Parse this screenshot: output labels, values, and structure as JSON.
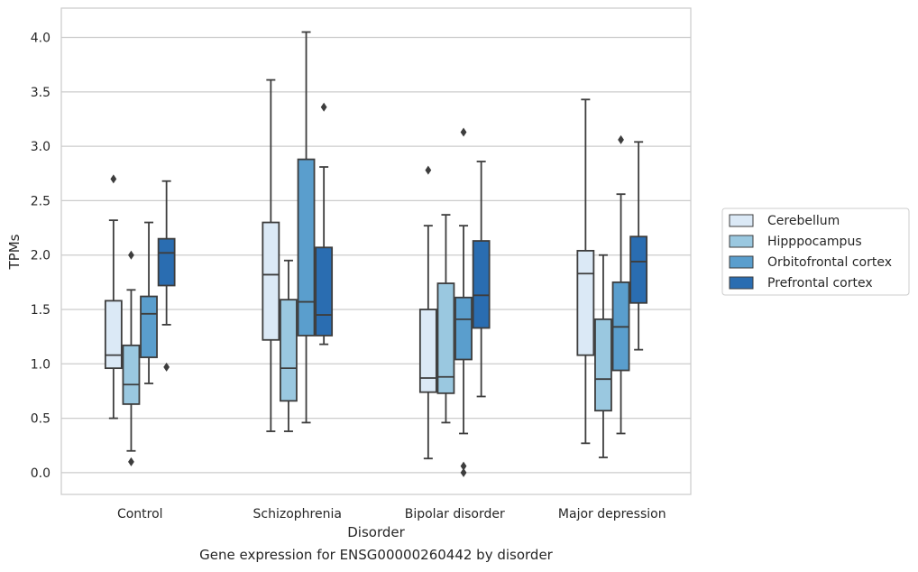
{
  "caption": "Gene expression for ENSG00000260442 by disorder",
  "chart_data": {
    "type": "box",
    "xlabel": "Disorder",
    "ylabel": "TPMs",
    "ylim": [
      -0.2,
      4.27
    ],
    "yticks": [
      "0.0",
      "0.5",
      "1.0",
      "1.5",
      "2.0",
      "2.5",
      "3.0",
      "3.5",
      "4.0"
    ],
    "grid": "horizontal",
    "legend_position": "right",
    "categories": [
      "Control",
      "Schizophrenia",
      "Bipolar disorder",
      "Major depression"
    ],
    "series": [
      {
        "name": "Cerebellum",
        "color": "#dbe9f6",
        "boxes": [
          {
            "q1": 0.96,
            "median": 1.08,
            "q3": 1.58,
            "whisker_low": 0.5,
            "whisker_high": 2.32,
            "outliers": [
              2.7
            ]
          },
          {
            "q1": 1.22,
            "median": 1.82,
            "q3": 2.3,
            "whisker_low": 0.38,
            "whisker_high": 3.61,
            "outliers": []
          },
          {
            "q1": 0.74,
            "median": 0.87,
            "q3": 1.5,
            "whisker_low": 0.13,
            "whisker_high": 2.27,
            "outliers": [
              2.78
            ]
          },
          {
            "q1": 1.08,
            "median": 1.83,
            "q3": 2.04,
            "whisker_low": 0.27,
            "whisker_high": 3.43,
            "outliers": []
          }
        ]
      },
      {
        "name": "Hipppocampus",
        "color": "#9ac8e0",
        "boxes": [
          {
            "q1": 0.63,
            "median": 0.81,
            "q3": 1.17,
            "whisker_low": 0.2,
            "whisker_high": 1.68,
            "outliers": [
              2.0,
              0.1
            ]
          },
          {
            "q1": 0.66,
            "median": 0.96,
            "q3": 1.59,
            "whisker_low": 0.38,
            "whisker_high": 1.95,
            "outliers": []
          },
          {
            "q1": 0.73,
            "median": 0.88,
            "q3": 1.74,
            "whisker_low": 0.46,
            "whisker_high": 2.37,
            "outliers": []
          },
          {
            "q1": 0.57,
            "median": 0.86,
            "q3": 1.41,
            "whisker_low": 0.14,
            "whisker_high": 2.0,
            "outliers": []
          }
        ]
      },
      {
        "name": "Orbitofrontal cortex",
        "color": "#5a9ecd",
        "boxes": [
          {
            "q1": 1.06,
            "median": 1.46,
            "q3": 1.62,
            "whisker_low": 0.82,
            "whisker_high": 2.3,
            "outliers": []
          },
          {
            "q1": 1.26,
            "median": 1.57,
            "q3": 2.88,
            "whisker_low": 0.46,
            "whisker_high": 4.05,
            "outliers": []
          },
          {
            "q1": 1.04,
            "median": 1.41,
            "q3": 1.61,
            "whisker_low": 0.36,
            "whisker_high": 2.27,
            "outliers": [
              3.13,
              0.06,
              0.0
            ]
          },
          {
            "q1": 0.94,
            "median": 1.34,
            "q3": 1.75,
            "whisker_low": 0.36,
            "whisker_high": 2.56,
            "outliers": [
              3.06
            ]
          }
        ]
      },
      {
        "name": "Prefrontal cortex",
        "color": "#2a6db1",
        "boxes": [
          {
            "q1": 1.72,
            "median": 2.02,
            "q3": 2.15,
            "whisker_low": 1.36,
            "whisker_high": 2.68,
            "outliers": [
              0.97
            ]
          },
          {
            "q1": 1.26,
            "median": 1.45,
            "q3": 2.07,
            "whisker_low": 1.18,
            "whisker_high": 2.81,
            "outliers": [
              3.36
            ]
          },
          {
            "q1": 1.33,
            "median": 1.63,
            "q3": 2.13,
            "whisker_low": 0.7,
            "whisker_high": 2.86,
            "outliers": []
          },
          {
            "q1": 1.56,
            "median": 1.94,
            "q3": 2.17,
            "whisker_low": 1.13,
            "whisker_high": 3.04,
            "outliers": []
          }
        ]
      }
    ]
  }
}
